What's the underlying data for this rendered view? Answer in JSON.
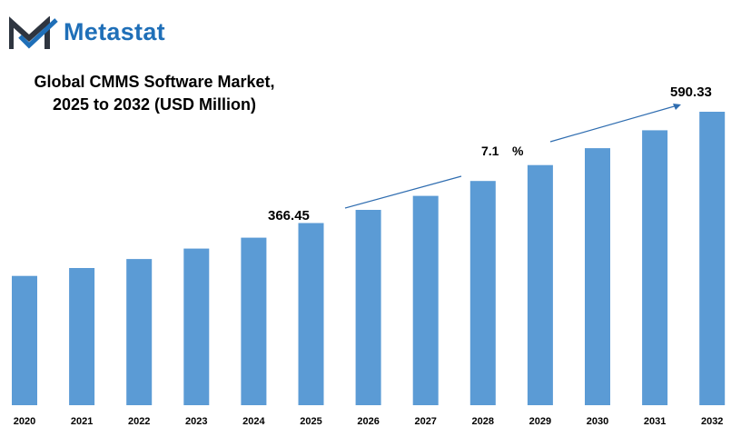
{
  "brand": {
    "name": "Metastat",
    "color": "#1f6fb8",
    "mark_color": "#2e3540"
  },
  "chart_data": {
    "type": "bar",
    "title_lines": [
      "Global CMMS Software Market,",
      "2025 to 2032 (USD Million)"
    ],
    "categories": [
      "2020",
      "2021",
      "2022",
      "2023",
      "2024",
      "2025",
      "2026",
      "2027",
      "2028",
      "2029",
      "2030",
      "2031",
      "2032"
    ],
    "values": [
      260,
      276,
      294,
      315,
      337,
      366.45,
      393,
      421,
      451,
      483,
      517,
      553,
      590.33
    ],
    "bar_color": "#5b9bd5",
    "ylim": [
      0,
      650
    ],
    "annotations": {
      "start_value": "366.45",
      "end_value": "590.33",
      "cagr_value": "7.1",
      "cagr_unit": "%"
    },
    "xlabel": "",
    "ylabel": "",
    "grid": false,
    "legend": "none"
  }
}
